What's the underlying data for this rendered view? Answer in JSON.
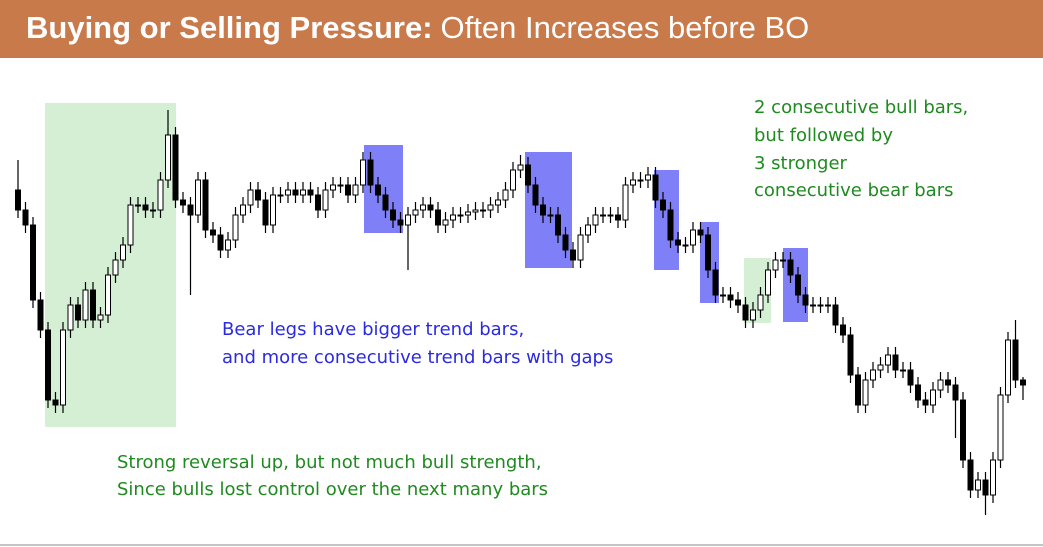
{
  "chart_data": {
    "type": "candlestick",
    "title": "Buying or Selling Pressure:",
    "subtitle": "Often Increases before BO",
    "annotations": [
      [
        "2 consecutive bull bars,",
        "but followed by",
        "3 stronger",
        "consecutive bear bars"
      ],
      [
        "Bear legs have bigger trend bars,",
        "and more consecutive trend bars with gaps"
      ],
      [
        "Strong reversal up, but not much bull strength,",
        "Since bulls lost control over the next many bars"
      ]
    ],
    "ylim": [
      0,
      420
    ],
    "up_color": "#ffffff",
    "down_color": "#000000",
    "edge_color": "#000000",
    "open": [
      330,
      310,
      295,
      220,
      190,
      120,
      115,
      190,
      215,
      200,
      230,
      200,
      205,
      245,
      260,
      275,
      315,
      315,
      310,
      310,
      340,
      385,
      320,
      315,
      305,
      340,
      290,
      285,
      270,
      280,
      305,
      315,
      330,
      320,
      295,
      325,
      325,
      330,
      325,
      330,
      325,
      310,
      330,
      335,
      335,
      325,
      335,
      360,
      335,
      325,
      310,
      300,
      295,
      305,
      310,
      315,
      310,
      295,
      300,
      305,
      305,
      308,
      310,
      310,
      315,
      320,
      330,
      350,
      355,
      335,
      315,
      305,
      305,
      285,
      270,
      260,
      285,
      295,
      305,
      305,
      305,
      300,
      335,
      340,
      340,
      345,
      320,
      310,
      280,
      275,
      275,
      290,
      285,
      250,
      225,
      225,
      220,
      215,
      200,
      210,
      225,
      250,
      260,
      260,
      245,
      225,
      215,
      215,
      215,
      215,
      195,
      185,
      145,
      115,
      140,
      150,
      155,
      165,
      150,
      150,
      135,
      120,
      115,
      130,
      140,
      135,
      120,
      60,
      30,
      40,
      25,
      60,
      125,
      180,
      140
    ],
    "high": [
      360,
      318,
      303,
      228,
      198,
      128,
      198,
      223,
      223,
      238,
      238,
      213,
      253,
      268,
      283,
      323,
      323,
      323,
      318,
      348,
      410,
      393,
      328,
      323,
      348,
      348,
      298,
      293,
      288,
      313,
      323,
      338,
      338,
      328,
      333,
      333,
      338,
      338,
      338,
      338,
      333,
      338,
      343,
      343,
      343,
      343,
      368,
      368,
      343,
      333,
      318,
      308,
      313,
      318,
      323,
      323,
      318,
      308,
      313,
      313,
      316,
      318,
      318,
      323,
      328,
      338,
      358,
      365,
      363,
      343,
      323,
      313,
      313,
      293,
      278,
      293,
      303,
      313,
      313,
      313,
      313,
      343,
      348,
      348,
      353,
      353,
      328,
      318,
      288,
      283,
      298,
      298,
      293,
      258,
      233,
      233,
      228,
      223,
      218,
      233,
      258,
      268,
      268,
      268,
      253,
      233,
      223,
      223,
      223,
      223,
      203,
      193,
      153,
      148,
      158,
      163,
      173,
      173,
      158,
      158,
      143,
      128,
      138,
      148,
      148,
      143,
      128,
      68,
      48,
      48,
      68,
      133,
      188,
      200,
      143
    ],
    "low": [
      302,
      287,
      212,
      182,
      112,
      107,
      107,
      182,
      192,
      192,
      192,
      192,
      197,
      237,
      252,
      267,
      307,
      302,
      302,
      302,
      332,
      312,
      307,
      225,
      297,
      282,
      277,
      262,
      262,
      272,
      297,
      307,
      312,
      287,
      287,
      317,
      317,
      317,
      317,
      317,
      302,
      302,
      322,
      327,
      317,
      317,
      327,
      327,
      317,
      302,
      292,
      287,
      250,
      297,
      302,
      302,
      287,
      287,
      292,
      297,
      297,
      300,
      302,
      302,
      307,
      312,
      322,
      342,
      327,
      307,
      297,
      297,
      277,
      262,
      252,
      252,
      277,
      287,
      297,
      297,
      292,
      292,
      327,
      332,
      332,
      312,
      302,
      272,
      267,
      267,
      267,
      277,
      242,
      217,
      217,
      212,
      207,
      192,
      192,
      202,
      217,
      242,
      252,
      237,
      217,
      207,
      207,
      207,
      207,
      187,
      177,
      137,
      107,
      107,
      132,
      142,
      147,
      142,
      142,
      127,
      112,
      107,
      107,
      122,
      127,
      82,
      52,
      22,
      22,
      5,
      17,
      52,
      117,
      132,
      120
    ],
    "close": [
      310,
      295,
      220,
      190,
      120,
      115,
      190,
      215,
      200,
      230,
      200,
      205,
      245,
      260,
      275,
      315,
      315,
      310,
      310,
      340,
      385,
      320,
      315,
      305,
      340,
      290,
      285,
      270,
      280,
      305,
      315,
      330,
      320,
      295,
      325,
      325,
      330,
      325,
      330,
      325,
      310,
      330,
      335,
      335,
      325,
      335,
      360,
      335,
      325,
      310,
      300,
      295,
      305,
      310,
      315,
      310,
      295,
      300,
      305,
      305,
      308,
      310,
      310,
      315,
      320,
      330,
      350,
      355,
      335,
      315,
      305,
      305,
      285,
      270,
      260,
      285,
      295,
      305,
      305,
      305,
      300,
      335,
      340,
      340,
      345,
      320,
      310,
      280,
      275,
      275,
      290,
      285,
      250,
      225,
      225,
      220,
      215,
      200,
      210,
      225,
      250,
      260,
      260,
      245,
      225,
      215,
      215,
      215,
      215,
      195,
      185,
      145,
      115,
      140,
      150,
      155,
      165,
      150,
      150,
      135,
      120,
      115,
      130,
      140,
      135,
      120,
      60,
      30,
      40,
      25,
      60,
      125,
      180,
      140,
      135
    ]
  }
}
